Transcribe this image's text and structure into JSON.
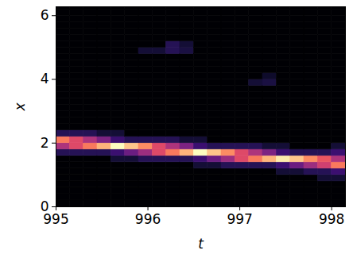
{
  "chart_data": {
    "type": "heatmap",
    "x_label": "t",
    "y_label": "x",
    "t": [
      995.075,
      995.225,
      995.375,
      995.525,
      995.675,
      995.825,
      995.975,
      996.125,
      996.275,
      996.425,
      996.575,
      996.725,
      996.875,
      997.025,
      997.175,
      997.325,
      997.475,
      997.625,
      997.775,
      997.925,
      998.075
    ],
    "x": [
      0.1,
      0.3,
      0.5,
      0.7,
      0.9,
      1.1,
      1.3,
      1.5,
      1.7,
      1.9,
      2.1,
      2.3,
      2.5,
      2.7,
      2.9,
      3.1,
      3.3,
      3.5,
      3.7,
      3.9,
      4.1,
      4.3,
      4.5,
      4.7,
      4.9,
      5.1,
      5.3,
      5.5,
      5.7,
      5.9,
      6.1,
      6.3
    ],
    "values": [
      [
        0,
        0,
        0,
        0,
        0,
        0,
        0,
        0,
        0.15,
        0.48,
        0.72,
        0.15,
        0,
        0,
        0,
        0,
        0,
        0,
        0,
        0,
        0,
        0,
        0,
        0,
        0,
        0,
        0,
        0,
        0,
        0,
        0,
        0
      ],
      [
        0,
        0,
        0,
        0,
        0,
        0,
        0,
        0,
        0.15,
        0.6,
        0.6,
        0.15,
        0,
        0,
        0,
        0,
        0,
        0,
        0,
        0,
        0,
        0,
        0,
        0,
        0,
        0,
        0,
        0,
        0,
        0,
        0,
        0
      ],
      [
        0,
        0,
        0,
        0,
        0,
        0,
        0,
        0,
        0.15,
        0.72,
        0.48,
        0.15,
        0,
        0,
        0,
        0,
        0,
        0,
        0,
        0,
        0,
        0,
        0,
        0,
        0,
        0,
        0,
        0,
        0,
        0,
        0,
        0
      ],
      [
        0,
        0,
        0,
        0,
        0,
        0,
        0,
        0,
        0.15,
        0.84,
        0.36,
        0.1,
        0,
        0,
        0,
        0,
        0,
        0,
        0,
        0,
        0,
        0,
        0,
        0,
        0,
        0,
        0,
        0,
        0,
        0,
        0,
        0
      ],
      [
        0,
        0,
        0,
        0,
        0,
        0,
        0,
        0.1,
        0.2,
        1,
        0.2,
        0.1,
        0,
        0,
        0,
        0,
        0,
        0,
        0,
        0,
        0,
        0,
        0,
        0,
        0,
        0,
        0,
        0,
        0,
        0,
        0,
        0
      ],
      [
        0,
        0,
        0,
        0,
        0,
        0,
        0,
        0.1,
        0.32,
        0.88,
        0.15,
        0,
        0,
        0,
        0,
        0,
        0,
        0,
        0,
        0,
        0,
        0,
        0,
        0,
        0,
        0,
        0,
        0,
        0,
        0,
        0,
        0
      ],
      [
        0,
        0,
        0,
        0,
        0,
        0,
        0,
        0.15,
        0.44,
        0.76,
        0.15,
        0,
        0,
        0,
        0,
        0,
        0,
        0,
        0,
        0,
        0,
        0,
        0,
        0,
        0.1,
        0,
        0,
        0,
        0,
        0,
        0,
        0
      ],
      [
        0,
        0,
        0,
        0,
        0,
        0,
        0,
        0.15,
        0.6,
        0.6,
        0.15,
        0,
        0,
        0,
        0,
        0,
        0,
        0,
        0,
        0,
        0,
        0,
        0,
        0,
        0.1,
        0,
        0,
        0,
        0,
        0,
        0,
        0
      ],
      [
        0,
        0,
        0,
        0,
        0,
        0,
        0,
        0.15,
        0.72,
        0.48,
        0.15,
        0,
        0,
        0,
        0,
        0,
        0,
        0,
        0,
        0,
        0,
        0,
        0,
        0,
        0.15,
        0.15,
        0,
        0,
        0,
        0,
        0,
        0
      ],
      [
        0,
        0,
        0,
        0,
        0,
        0,
        0,
        0.15,
        0.84,
        0.36,
        0.1,
        0,
        0,
        0,
        0,
        0,
        0,
        0,
        0,
        0,
        0,
        0,
        0,
        0,
        0.12,
        0.1,
        0,
        0,
        0,
        0,
        0,
        0
      ],
      [
        0,
        0,
        0,
        0,
        0,
        0,
        0.1,
        0.2,
        1,
        0.2,
        0.1,
        0,
        0,
        0,
        0,
        0,
        0,
        0,
        0,
        0,
        0,
        0,
        0,
        0,
        0,
        0,
        0,
        0,
        0,
        0,
        0,
        0
      ],
      [
        0,
        0,
        0,
        0,
        0,
        0,
        0.1,
        0.32,
        0.88,
        0.15,
        0,
        0,
        0,
        0,
        0,
        0,
        0,
        0,
        0,
        0,
        0,
        0,
        0,
        0,
        0,
        0,
        0,
        0,
        0,
        0,
        0,
        0
      ],
      [
        0,
        0,
        0,
        0,
        0,
        0,
        0.15,
        0.44,
        0.76,
        0.15,
        0,
        0,
        0,
        0,
        0,
        0,
        0,
        0,
        0,
        0,
        0,
        0,
        0,
        0,
        0,
        0,
        0,
        0,
        0,
        0,
        0,
        0
      ],
      [
        0,
        0,
        0,
        0,
        0,
        0,
        0.15,
        0.6,
        0.6,
        0.15,
        0,
        0,
        0,
        0,
        0,
        0,
        0,
        0,
        0,
        0,
        0,
        0,
        0,
        0,
        0,
        0,
        0,
        0,
        0,
        0,
        0,
        0
      ],
      [
        0,
        0,
        0,
        0,
        0,
        0,
        0.15,
        0.72,
        0.48,
        0.15,
        0,
        0,
        0,
        0,
        0,
        0,
        0,
        0,
        0,
        0.1,
        0,
        0,
        0,
        0,
        0,
        0,
        0,
        0,
        0,
        0,
        0,
        0
      ],
      [
        0,
        0,
        0,
        0,
        0,
        0,
        0.15,
        0.84,
        0.36,
        0.1,
        0,
        0,
        0,
        0,
        0,
        0,
        0,
        0,
        0,
        0.12,
        0.08,
        0,
        0,
        0,
        0,
        0,
        0,
        0,
        0,
        0,
        0,
        0
      ],
      [
        0,
        0,
        0,
        0,
        0,
        0.1,
        0.2,
        0.96,
        0.2,
        0.1,
        0,
        0,
        0,
        0,
        0,
        0,
        0,
        0,
        0,
        0,
        0,
        0,
        0,
        0,
        0,
        0,
        0,
        0,
        0,
        0,
        0,
        0
      ],
      [
        0,
        0,
        0,
        0,
        0,
        0.1,
        0.32,
        0.88,
        0.15,
        0,
        0,
        0,
        0,
        0,
        0,
        0,
        0,
        0,
        0,
        0,
        0,
        0,
        0,
        0,
        0,
        0,
        0,
        0,
        0,
        0,
        0,
        0
      ],
      [
        0,
        0,
        0,
        0,
        0,
        0.15,
        0.44,
        0.76,
        0.15,
        0,
        0,
        0,
        0,
        0,
        0,
        0,
        0,
        0,
        0,
        0,
        0,
        0,
        0,
        0,
        0,
        0,
        0,
        0,
        0,
        0,
        0,
        0
      ],
      [
        0,
        0,
        0,
        0,
        0.1,
        0.15,
        0.56,
        0.64,
        0.15,
        0,
        0,
        0,
        0,
        0,
        0,
        0,
        0,
        0,
        0,
        0,
        0,
        0,
        0,
        0,
        0,
        0,
        0,
        0,
        0,
        0,
        0,
        0
      ],
      [
        0,
        0,
        0,
        0,
        0.1,
        0.2,
        0.72,
        0.48,
        0.2,
        0.1,
        0,
        0,
        0,
        0,
        0,
        0,
        0,
        0,
        0,
        0,
        0,
        0,
        0,
        0,
        0,
        0,
        0,
        0,
        0,
        0,
        0,
        0
      ]
    ],
    "xlim": [
      995,
      998.15
    ],
    "ylim": [
      0,
      6.28
    ],
    "xticks": [
      995,
      996,
      997,
      998
    ],
    "yticks": [
      0,
      2,
      4,
      6
    ],
    "zlim": [
      0,
      1
    ],
    "color": "magma"
  }
}
